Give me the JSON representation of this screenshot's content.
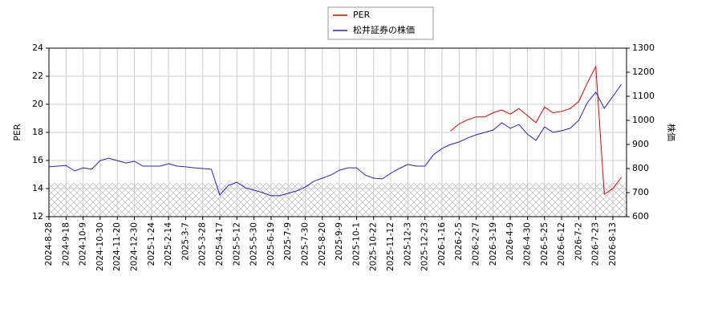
{
  "chart_data": {
    "type": "line",
    "categories": [
      "2024-8-28",
      null,
      "2024-9-18",
      null,
      "2024-10-9",
      null,
      "2024-10-30",
      null,
      "2024-11-20",
      null,
      "2024-12-30",
      null,
      "2025-1-24",
      null,
      "2025-2-14",
      null,
      "2025-3-7",
      null,
      "2025-3-28",
      null,
      "2025-4-17",
      null,
      "2025-5-12",
      null,
      "2025-5-30",
      null,
      "2025-6-19",
      null,
      "2025-7-9",
      null,
      "2025-7-30",
      null,
      "2025-8-20",
      null,
      "2025-9-9",
      null,
      "2025-10-1",
      null,
      "2025-10-22",
      null,
      "2025-11-12",
      null,
      "2025-12-3",
      null,
      "2025-12-23",
      null,
      "2026-1-16",
      null,
      "2026-2-5",
      null,
      "2026-2-27",
      null,
      "2026-3-19",
      null,
      "2026-4-9",
      null,
      "2026-4-30",
      null,
      "2026-5-25",
      null,
      "2026-6-12",
      null,
      "2026-7-2",
      null,
      "2026-7-23",
      null,
      "2026-8-13",
      null
    ],
    "series": [
      {
        "name": "PER",
        "color": "#dd0000",
        "axis": "y",
        "values": [
          null,
          null,
          null,
          null,
          null,
          null,
          null,
          null,
          null,
          null,
          null,
          null,
          null,
          null,
          null,
          null,
          null,
          null,
          null,
          null,
          null,
          null,
          null,
          null,
          null,
          null,
          null,
          null,
          null,
          null,
          null,
          null,
          null,
          null,
          null,
          null,
          null,
          null,
          null,
          null,
          null,
          null,
          null,
          null,
          null,
          null,
          null,
          18.1,
          18.6,
          18.9,
          19.1,
          19.1,
          19.4,
          19.6,
          19.3,
          19.7,
          19.2,
          18.7,
          19.8,
          19.4,
          19.5,
          19.7,
          20.2,
          21.5,
          22.7,
          13.6,
          14.0,
          14.8
        ]
      },
      {
        "name": "松井証券の株価",
        "color": "#2222cc",
        "axis": "y2",
        "values": [
          807,
          810,
          813,
          790,
          803,
          797,
          833,
          843,
          833,
          823,
          830,
          810,
          810,
          810,
          820,
          810,
          807,
          803,
          800,
          797,
          690,
          730,
          743,
          720,
          710,
          700,
          687,
          687,
          697,
          707,
          723,
          747,
          760,
          773,
          793,
          803,
          803,
          773,
          760,
          757,
          780,
          800,
          817,
          810,
          810,
          857,
          883,
          900,
          910,
          927,
          940,
          950,
          960,
          990,
          967,
          983,
          943,
          917,
          973,
          950,
          957,
          967,
          1000,
          1073,
          1117,
          1050,
          1100,
          1150
        ]
      }
    ],
    "ylabel": "PER",
    "y2label": "株価",
    "ylim": [
      12,
      24
    ],
    "yticks": [
      12,
      14,
      16,
      18,
      20,
      22,
      24
    ],
    "y2lim": [
      600,
      1300
    ],
    "y2ticks": [
      600,
      700,
      800,
      900,
      1000,
      1100,
      1200,
      1300
    ],
    "shaded_ylim": [
      12,
      14.4
    ],
    "grid": true,
    "legend": "top"
  }
}
